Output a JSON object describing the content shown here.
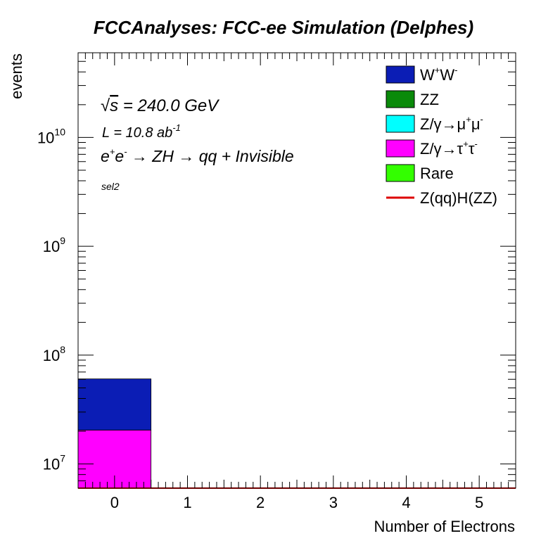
{
  "chart_data": {
    "type": "bar",
    "stacked": true,
    "title": "FCCAnalyses: FCC-ee Simulation (Delphes)",
    "xlabel": "Number of Electrons",
    "ylabel": "events",
    "y_scale": "log",
    "xlim": [
      -0.5,
      5.5
    ],
    "ylim": [
      6000000,
      60000000000
    ],
    "x_ticks": [
      "0",
      "1",
      "2",
      "3",
      "4",
      "5"
    ],
    "y_ticks": [
      {
        "value": 10000000,
        "base": "10",
        "exp": "7"
      },
      {
        "value": 100000000,
        "base": "10",
        "exp": "8"
      },
      {
        "value": 1000000000,
        "base": "10",
        "exp": "9"
      },
      {
        "value": 10000000000,
        "base": "10",
        "exp": "10"
      }
    ],
    "grid": false,
    "legend_position": "top-right",
    "bins": [
      0,
      1,
      2,
      3,
      4,
      5
    ],
    "series": [
      {
        "name": "W+W-",
        "color": "#0b1db5",
        "values": [
          40000000,
          0,
          0,
          0,
          0,
          0
        ]
      },
      {
        "name": "ZZ",
        "color": "#0a8a0a",
        "values": [
          0,
          0,
          0,
          0,
          0,
          0
        ]
      },
      {
        "name": "Z/γ→μ+μ-",
        "color": "#00ffff",
        "values": [
          0,
          0,
          0,
          0,
          0,
          0
        ]
      },
      {
        "name": "Z/γ→τ+τ-",
        "color": "#ff00ff",
        "values": [
          20500000,
          0,
          0,
          0,
          0,
          0
        ]
      },
      {
        "name": "Rare",
        "color": "#33ff00",
        "values": [
          0,
          0,
          0,
          0,
          0,
          0
        ]
      }
    ],
    "signal": {
      "name": "Z(qq)H(ZZ)",
      "color": "#dd0000",
      "values": [
        1200,
        0,
        0,
        0,
        0,
        0
      ]
    },
    "legend": [
      {
        "base": "W",
        "sup1": "+",
        "mid": "W",
        "sup2": "-",
        "style": "box",
        "color": "#0b1db5"
      },
      {
        "base": "ZZ",
        "sup1": "",
        "mid": "",
        "sup2": "",
        "style": "box",
        "color": "#0a8a0a"
      },
      {
        "base": "Z/γ→μ",
        "sup1": "+",
        "mid": "μ",
        "sup2": "-",
        "style": "box",
        "color": "#00ffff"
      },
      {
        "base": "Z/γ→τ",
        "sup1": "+",
        "mid": "τ",
        "sup2": "-",
        "style": "box",
        "color": "#ff00ff"
      },
      {
        "base": "Rare",
        "sup1": "",
        "mid": "",
        "sup2": "",
        "style": "box",
        "color": "#33ff00"
      },
      {
        "base": "Z(qq)H(ZZ)",
        "sup1": "",
        "mid": "",
        "sup2": "",
        "style": "line",
        "color": "#dd0000"
      }
    ],
    "annotations": {
      "sqrt_symbol": "√",
      "sqrt_var": "s",
      "energy": " = 240.0 GeV",
      "lumi_text": "L = 10.8 ab",
      "lumi_exp": "-1",
      "proc_e": "e",
      "proc_ep": "+",
      "proc_e2": "e",
      "proc_em": "-",
      "proc_rest": " → ZH → qq + Invisible",
      "selection": "sel2"
    }
  }
}
